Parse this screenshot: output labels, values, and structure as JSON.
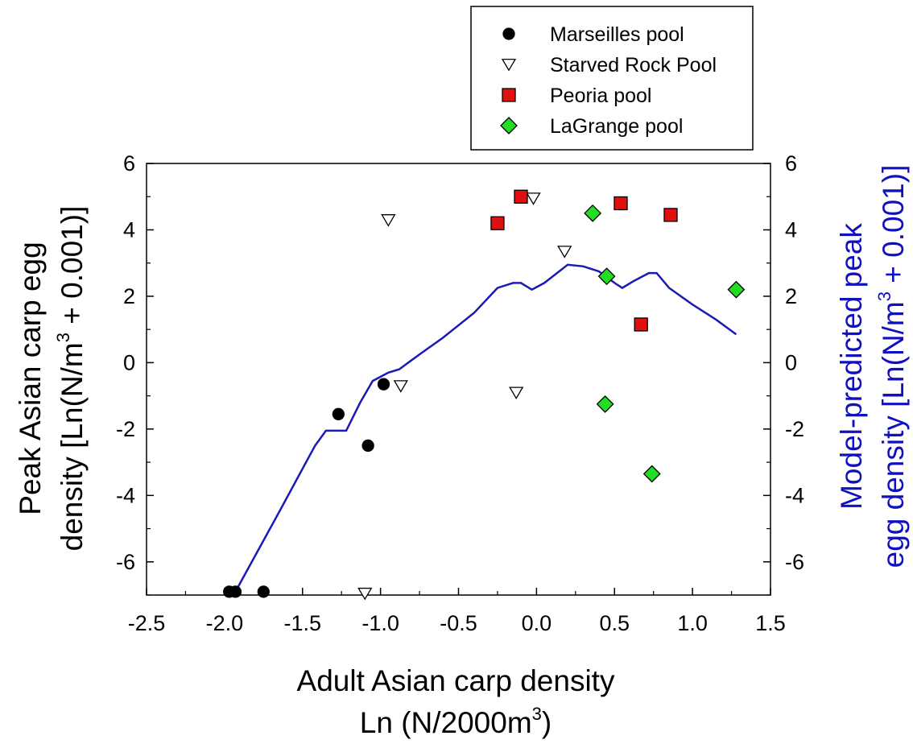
{
  "chart_data": {
    "type": "scatter",
    "xlabel_line1": "Adult Asian carp density",
    "xlabel_line2": "Ln (N/2000m",
    "xlabel_line2_sup": "3",
    "xlabel_line2_end": ")",
    "ylabel_left_line1": "Peak Asian carp egg",
    "ylabel_left_line2": "density [Ln(N/m",
    "ylabel_left_line2_sup": "3",
    "ylabel_left_line2_end": " + 0.001)]",
    "ylabel_right_line1": "Model-predicted peak",
    "ylabel_right_line2": "egg density [Ln(N/m",
    "ylabel_right_line2_sup": "3",
    "ylabel_right_line2_end": " + 0.001)]",
    "xlim": [
      -2.5,
      1.5
    ],
    "ylim": [
      -7,
      6
    ],
    "x_ticks": [
      "-2.5",
      "-2.0",
      "-1.5",
      "-1.0",
      "-0.5",
      "0.0",
      "0.5",
      "1.0",
      "1.5"
    ],
    "y_ticks": [
      "6",
      "4",
      "2",
      "0",
      "-2",
      "-4",
      "-6"
    ],
    "y_ticks_right": [
      "6",
      "4",
      "2",
      "0",
      "-2",
      "-4",
      "-6"
    ],
    "grid": false,
    "legend_position": "top-right",
    "line_color": "#1a1ab8",
    "series": [
      {
        "name": "Marseilles pool",
        "marker": "circle",
        "color": "#000000",
        "points": [
          [
            -1.97,
            -6.9
          ],
          [
            -1.93,
            -6.9
          ],
          [
            -1.75,
            -6.9
          ],
          [
            -1.27,
            -1.55
          ],
          [
            -1.08,
            -2.5
          ],
          [
            -0.98,
            -0.65
          ]
        ]
      },
      {
        "name": "Starved Rock Pool",
        "marker": "triangle-down",
        "color": "#ffffff",
        "points": [
          [
            -1.1,
            -6.95
          ],
          [
            -0.95,
            4.3
          ],
          [
            -0.87,
            -0.7
          ],
          [
            -0.13,
            -0.9
          ],
          [
            -0.02,
            4.95
          ],
          [
            0.18,
            3.35
          ]
        ]
      },
      {
        "name": "Peoria pool",
        "marker": "square",
        "color": "#e01010",
        "points": [
          [
            -0.25,
            4.2
          ],
          [
            -0.1,
            5.0
          ],
          [
            0.54,
            4.8
          ],
          [
            0.67,
            1.15
          ],
          [
            0.86,
            4.45
          ]
        ]
      },
      {
        "name": "LaGrange pool",
        "marker": "diamond",
        "color": "#22dd22",
        "points": [
          [
            0.36,
            4.5
          ],
          [
            0.44,
            -1.25
          ],
          [
            0.45,
            2.6
          ],
          [
            0.74,
            -3.35
          ],
          [
            1.28,
            2.2
          ]
        ]
      }
    ],
    "model_line": [
      [
        -1.93,
        -6.9
      ],
      [
        -1.65,
        -4.5
      ],
      [
        -1.42,
        -2.5
      ],
      [
        -1.35,
        -2.05
      ],
      [
        -1.22,
        -2.05
      ],
      [
        -1.13,
        -1.2
      ],
      [
        -1.05,
        -0.55
      ],
      [
        -0.95,
        -0.3
      ],
      [
        -0.88,
        -0.2
      ],
      [
        -0.75,
        0.25
      ],
      [
        -0.6,
        0.75
      ],
      [
        -0.4,
        1.5
      ],
      [
        -0.25,
        2.25
      ],
      [
        -0.15,
        2.4
      ],
      [
        -0.1,
        2.4
      ],
      [
        -0.03,
        2.2
      ],
      [
        0.05,
        2.4
      ],
      [
        0.2,
        2.95
      ],
      [
        0.3,
        2.9
      ],
      [
        0.4,
        2.75
      ],
      [
        0.5,
        2.4
      ],
      [
        0.55,
        2.25
      ],
      [
        0.62,
        2.45
      ],
      [
        0.72,
        2.7
      ],
      [
        0.77,
        2.7
      ],
      [
        0.85,
        2.25
      ],
      [
        1.0,
        1.75
      ],
      [
        1.15,
        1.3
      ],
      [
        1.28,
        0.85
      ]
    ]
  }
}
